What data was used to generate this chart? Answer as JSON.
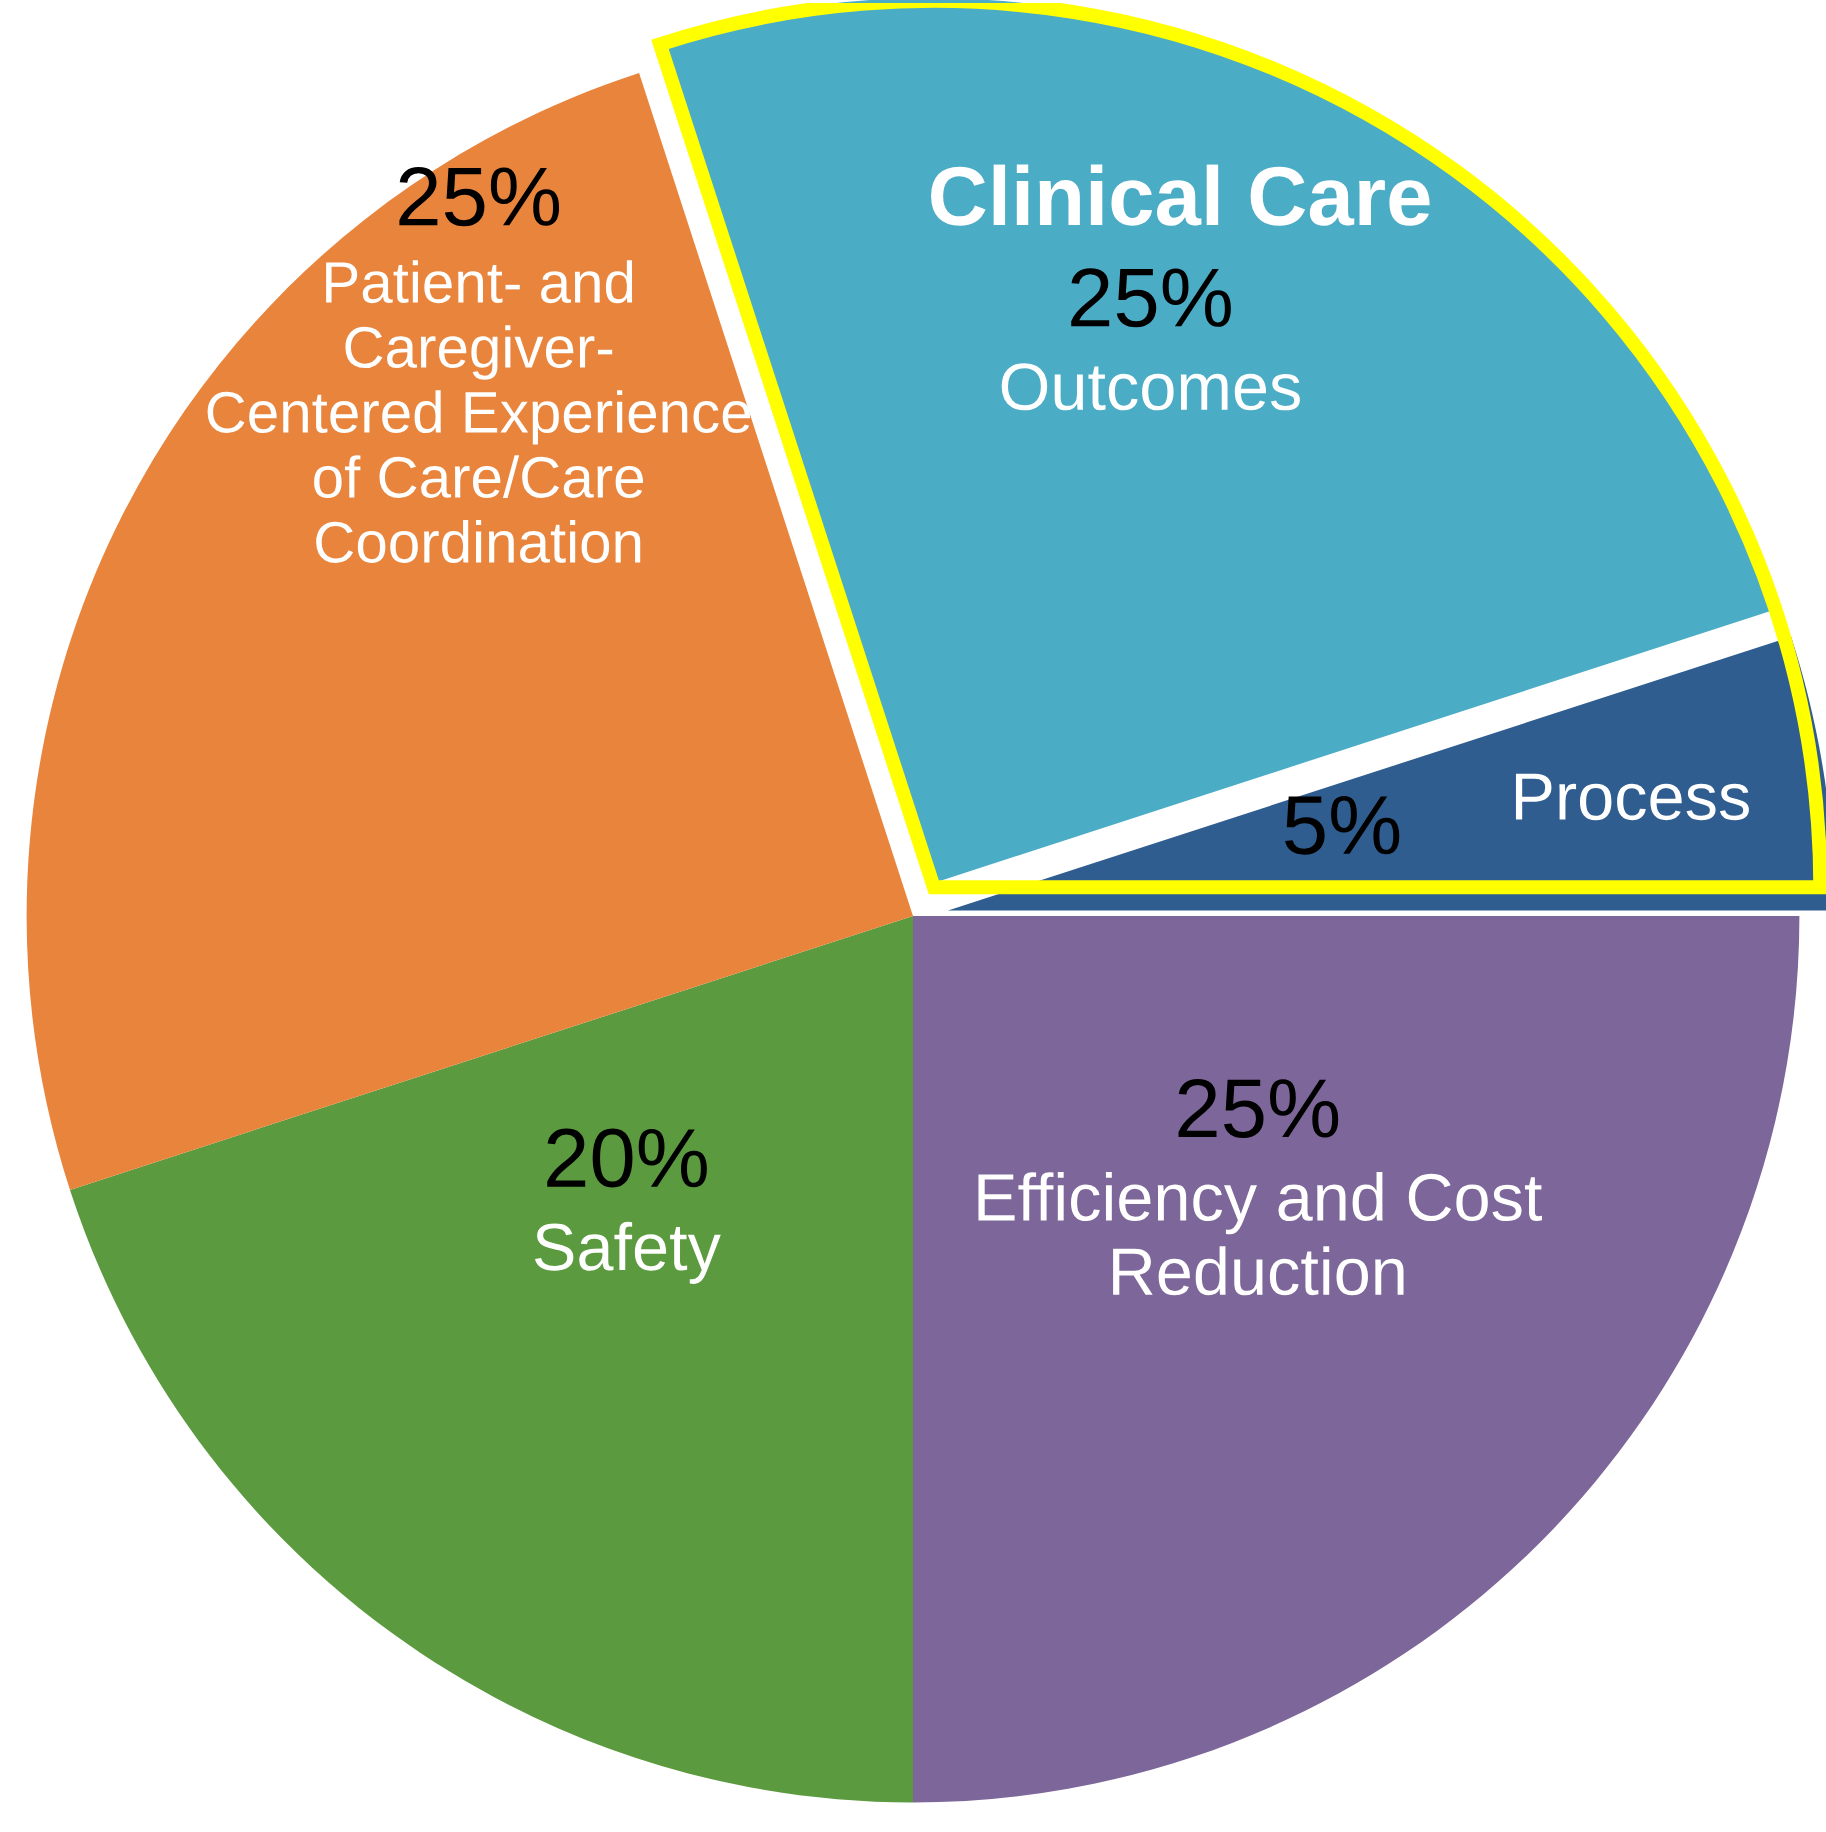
{
  "chart_data": {
    "type": "pie",
    "categories": [
      "Outcomes",
      "Process",
      "Efficiency and Cost\nReduction",
      "Safety",
      "Patient- and\nCaregiver-\nCentered Experience\nof Care/Care\nCoordination"
    ],
    "values": [
      25,
      5,
      25,
      20,
      25
    ],
    "value_labels": [
      "25%",
      "5%",
      "25%",
      "20%",
      "25%"
    ],
    "colors": [
      "#4bacc6",
      "#2f5d8f",
      "#7d6699",
      "#5b9a3e",
      "#e8843c"
    ],
    "annotations": [
      "Clinical Care"
    ]
  }
}
